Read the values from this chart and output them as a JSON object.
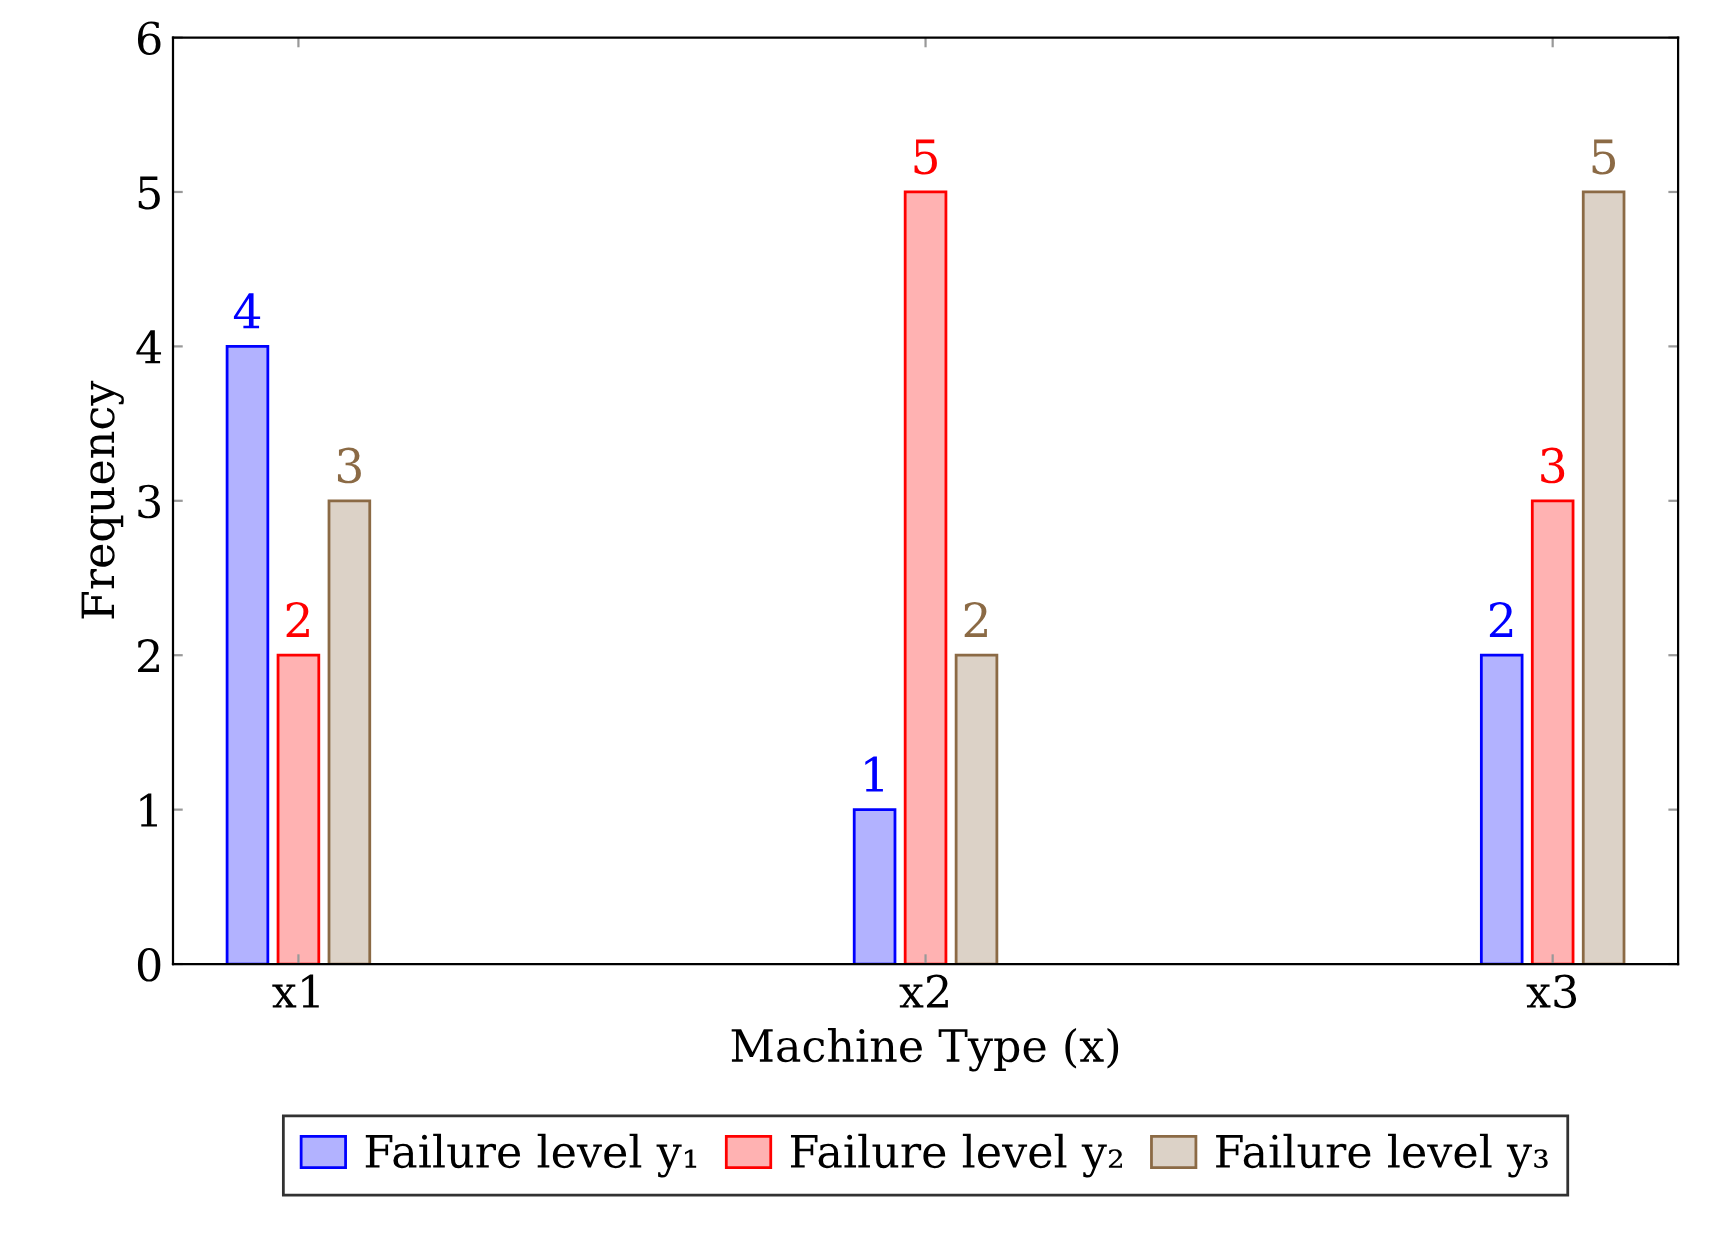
{
  "chart_data": {
    "type": "bar",
    "xlabel": "Machine Type (x)",
    "ylabel": "Frequency",
    "categories": [
      "x1",
      "x2",
      "x3"
    ],
    "series": [
      {
        "name": "Failure level y₁",
        "color": "#0000ff",
        "values": [
          4,
          1,
          2
        ]
      },
      {
        "name": "Failure level y₂",
        "color": "#ff0000",
        "values": [
          2,
          5,
          3
        ]
      },
      {
        "name": "Failure level y₃",
        "color": "#8b6a45",
        "values": [
          3,
          2,
          5
        ]
      }
    ],
    "ylim": [
      0,
      6
    ],
    "yticks": [
      0,
      1,
      2,
      3,
      4,
      5,
      6
    ],
    "data_labels": true,
    "legend": "bottom",
    "grid": false
  }
}
